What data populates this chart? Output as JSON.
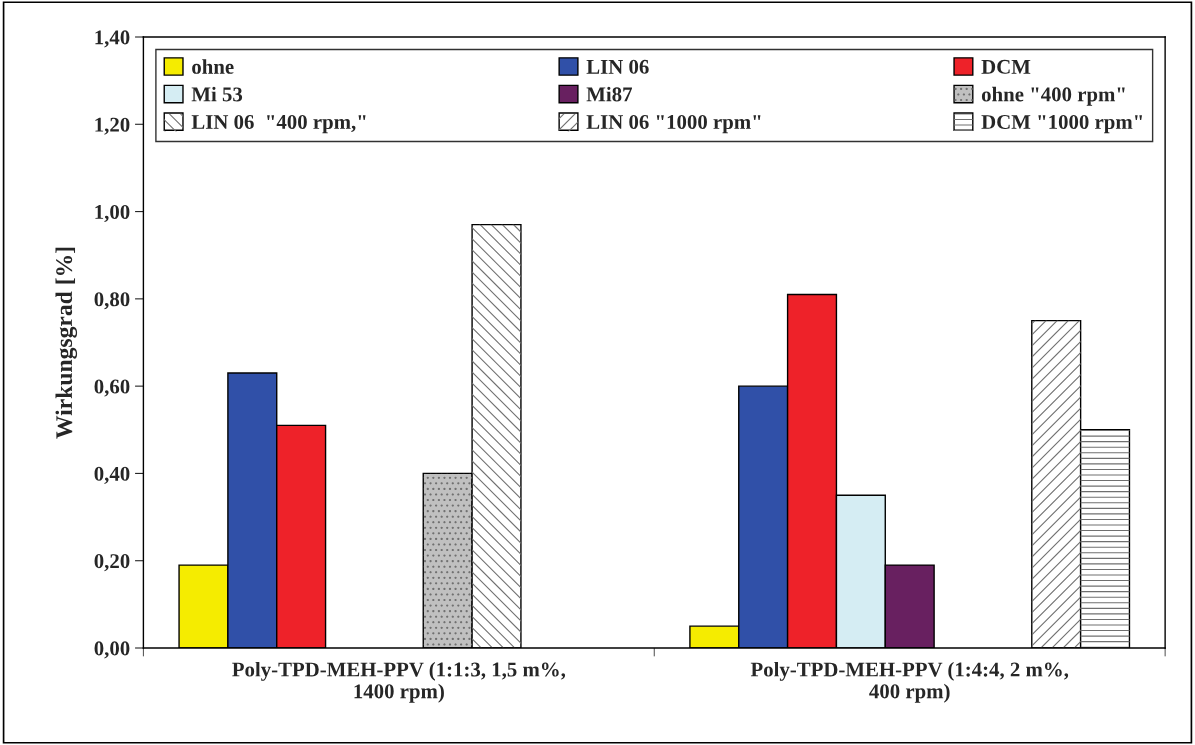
{
  "chart_data": {
    "type": "bar",
    "ylabel": "Wirkungsgrad [%]",
    "categories": [
      "Poly-TPD-MEH-PPV (1:1:3, 1,5 m%,\n1400 rpm)",
      "Poly-TPD-MEH-PPV (1:4:4, 2 m%,\n400 rpm)"
    ],
    "series": [
      {
        "name": "ohne",
        "color": "#f5ec00",
        "values": [
          0.19,
          0.05
        ]
      },
      {
        "name": "LIN 06",
        "color": "#3050a8",
        "values": [
          0.63,
          0.6
        ]
      },
      {
        "name": "DCM",
        "color": "#ee2229",
        "values": [
          0.51,
          0.81
        ]
      },
      {
        "name": "Mi 53",
        "color": "#d5edf3",
        "values": [
          null,
          0.35
        ]
      },
      {
        "name": "Mi87",
        "color": "#682060",
        "values": [
          null,
          0.19
        ]
      },
      {
        "name": "ohne \"400 rpm\"",
        "color": "#c0c0c0",
        "values": [
          0.4,
          null
        ]
      },
      {
        "name": "LIN 06  \"400 rpm,\"",
        "color": "#ffffff",
        "values": [
          0.97,
          null
        ]
      },
      {
        "name": "LIN 06 \"1000 rpm\"",
        "color": "#ffffff",
        "values": [
          null,
          0.75
        ]
      },
      {
        "name": "DCM \"1000 rpm\"",
        "color": "#ffffff",
        "values": [
          null,
          0.5
        ]
      }
    ],
    "ylim": [
      0,
      1.4
    ],
    "yticks": [
      {
        "value": 0,
        "label": "0,00"
      },
      {
        "value": 0.2,
        "label": "0,20"
      },
      {
        "value": 0.4,
        "label": "0,40"
      },
      {
        "value": 0.6,
        "label": "0,60"
      },
      {
        "value": 0.8,
        "label": "0,80"
      },
      {
        "value": 1.0,
        "label": "1,00"
      },
      {
        "value": 1.2,
        "label": "1,20"
      },
      {
        "value": 1.4,
        "label": "1,40"
      }
    ],
    "legend": "top",
    "grid": false
  }
}
